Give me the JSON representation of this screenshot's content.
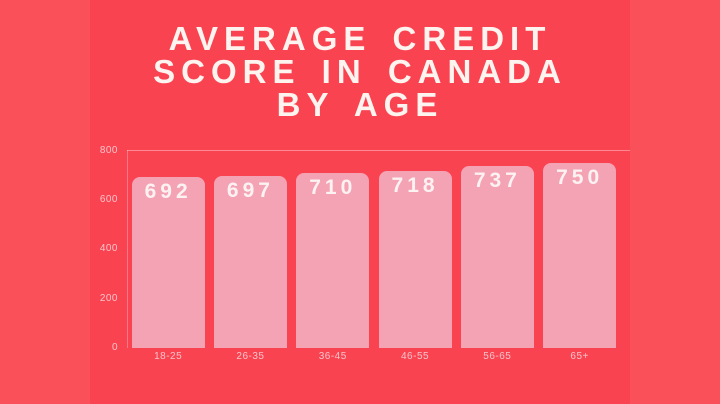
{
  "title": {
    "lines": [
      "AVERAGE CREDIT",
      "SCORE IN CANADA",
      "BY AGE"
    ]
  },
  "chart_data": {
    "type": "bar",
    "title": "AVERAGE CREDIT SCORE IN CANADA BY AGE",
    "categories": [
      "18-25",
      "26-35",
      "36-45",
      "46-55",
      "56-65",
      "65+"
    ],
    "values": [
      692,
      697,
      710,
      718,
      737,
      750
    ],
    "xlabel": "",
    "ylabel": "",
    "ylim": [
      0,
      800
    ],
    "yticks": [
      800,
      600,
      400,
      200,
      0
    ],
    "grid": "top-line-only",
    "legend": "none",
    "bar_value_labels": [
      "692",
      "697",
      "710",
      "718",
      "737",
      "750"
    ]
  },
  "colors": {
    "outer_background": "#f9505a",
    "panel_background": "#fa4351",
    "bar": "#f4a3b5",
    "title_text": "#fdf3ef",
    "value_text": "#fdf2f2",
    "axis_label_text": "#f8c4cb"
  }
}
